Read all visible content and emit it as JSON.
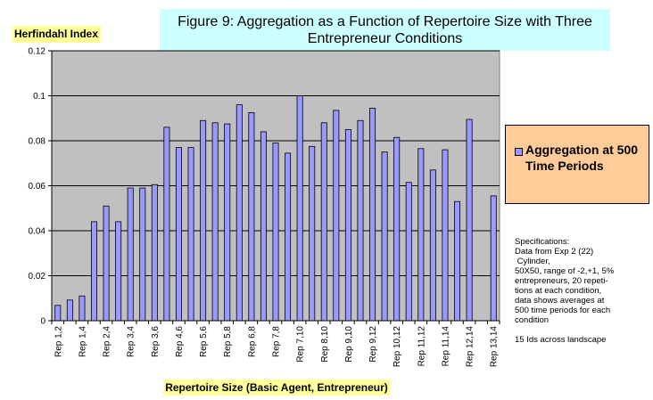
{
  "title_lines": [
    "Figure 9:  Aggregation as a Function of Repertoire Size with Three",
    "Entrepreneur Conditions"
  ],
  "ylabel": "Herfindahl Index",
  "xlabel": "Repertoire Size (Basic Agent, Entrepreneur)",
  "legend_label": "Aggregation at 500 Time Periods",
  "specifications": [
    "Specifications:",
    "Data from Exp 2 (22)",
    " Cylinder,",
    "50X50, range of -2,+1, 5%",
    "entrepreneurs, 20 repeti-",
    "tions at each condition,",
    "data shows averages at",
    "500 time periods for each",
    "condition",
    "",
    "15 Ids across landscape"
  ],
  "colors": {
    "plot_bg": "#c0c0c0",
    "bar": "#9999ff",
    "title_bg": "#ccffff",
    "label_bg": "#ffff99",
    "legend_bg": "#ffcc99"
  },
  "chart_data": {
    "type": "bar",
    "title": "Figure 9:  Aggregation as a Function of Repertoire Size with Three Entrepreneur Conditions",
    "xlabel": "Repertoire Size (Basic Agent, Entrepreneur)",
    "ylabel": "Herfindahl Index",
    "ylim": [
      0,
      0.12
    ],
    "yticks": [
      "0",
      "0.02",
      "0.04",
      "0.06",
      "0.08",
      "0.1",
      "0.12"
    ],
    "xtick_labels": [
      "Rep 1,2",
      "Rep 1,4",
      "Rep 2,4",
      "Rep 3,4",
      "Rep 3,6",
      "Rep 4,6",
      "Rep 5,6",
      "Rep 5,8",
      "Rep 6,8",
      "Rep 7,8",
      "Rep 7,10",
      "Rep 8,10",
      "Rep 9,10",
      "Rep 9,12",
      "Rep 10,12",
      "Rep 11,12",
      "Rep 11,14",
      "Rep 12,14",
      "Rep 13,14"
    ],
    "grid": true,
    "legend_position": "right",
    "series": [
      {
        "name": "Aggregation at 500 Time Periods",
        "values": [
          0.0068,
          0.0092,
          0.011,
          0.044,
          0.051,
          0.044,
          0.059,
          0.059,
          0.0605,
          0.086,
          0.077,
          0.077,
          0.089,
          0.088,
          0.0875,
          0.096,
          0.0925,
          0.084,
          0.079,
          0.0745,
          0.1,
          0.0775,
          0.088,
          0.0935,
          0.085,
          0.089,
          0.0945,
          0.075,
          0.0815,
          0.0615,
          0.0765,
          0.067,
          0.076,
          0.053,
          0.0895,
          null,
          0.0555
        ]
      }
    ]
  }
}
